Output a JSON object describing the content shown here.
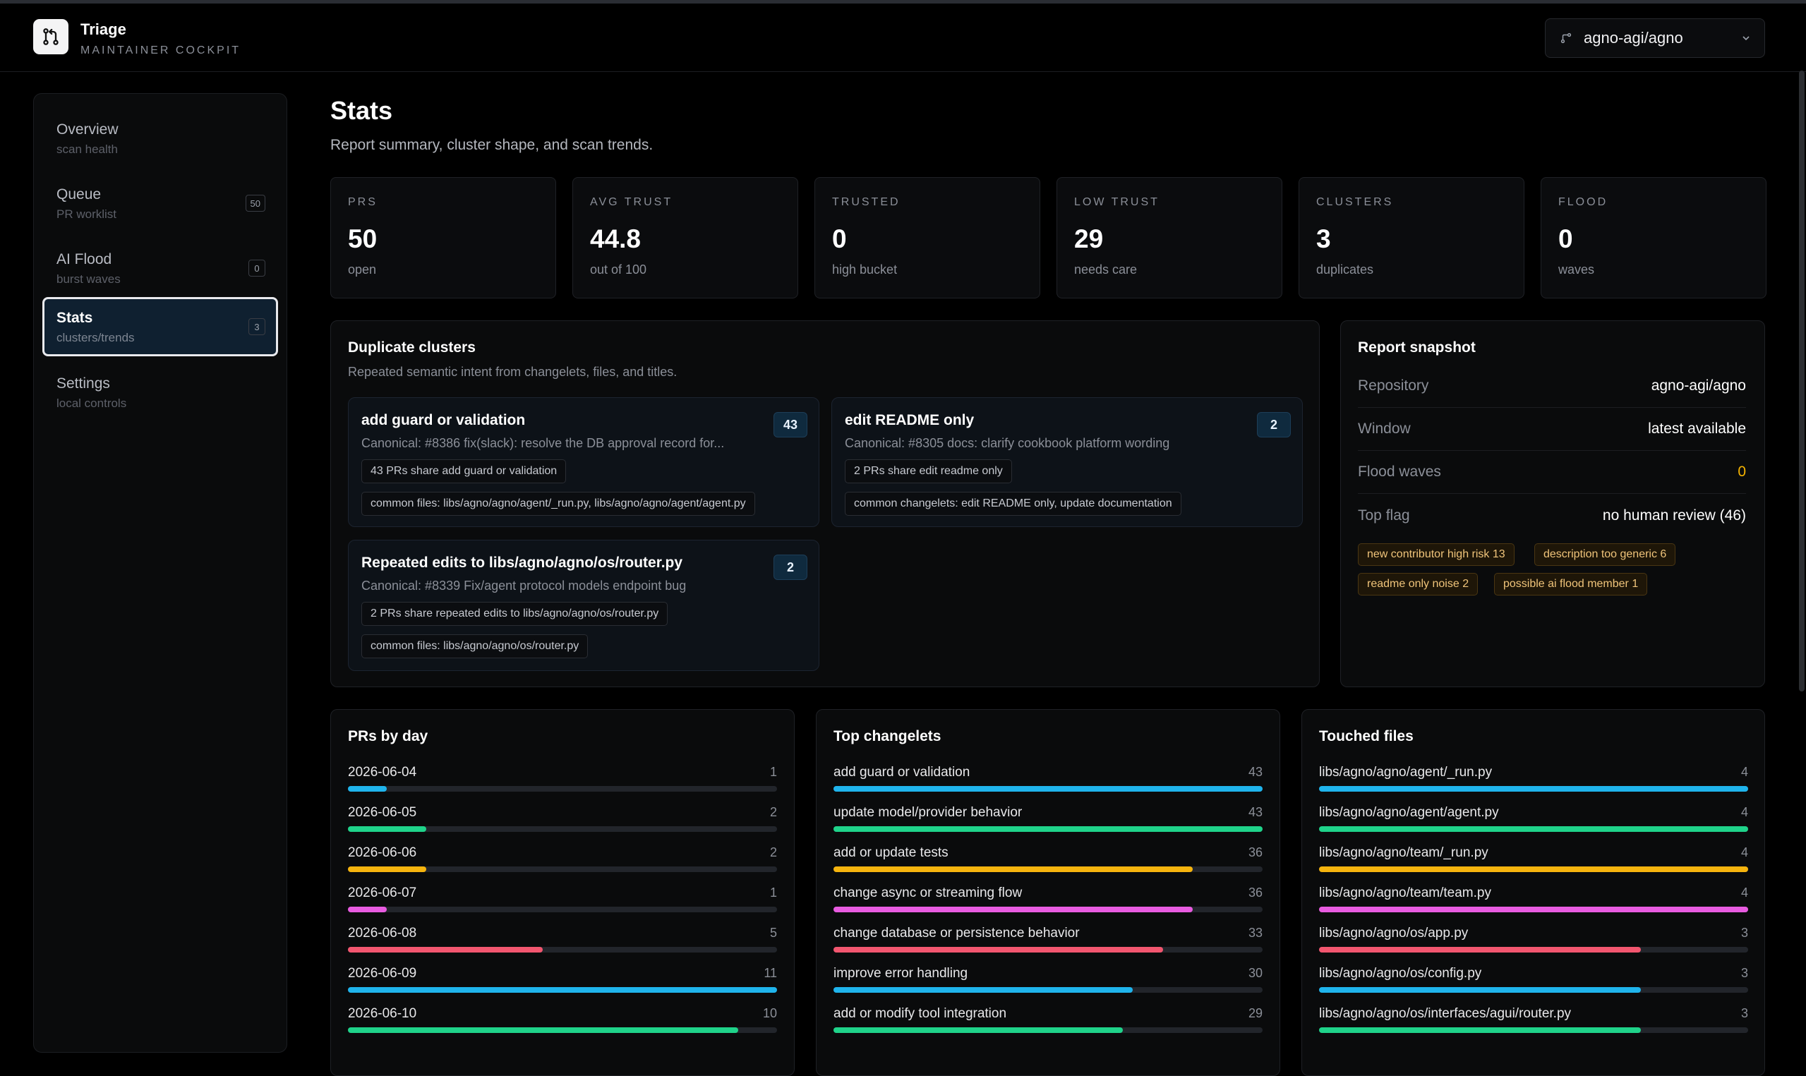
{
  "app": {
    "title": "Triage",
    "subtitle": "MAINTAINER COCKPIT",
    "repo": "agno-agi/agno"
  },
  "sidebar": {
    "items": [
      {
        "label": "Overview",
        "sub": "scan health",
        "badge": null,
        "active": false
      },
      {
        "label": "Queue",
        "sub": "PR worklist",
        "badge": "50",
        "active": false
      },
      {
        "label": "AI Flood",
        "sub": "burst waves",
        "badge": "0",
        "active": false
      },
      {
        "label": "Stats",
        "sub": "clusters/trends",
        "badge": "3",
        "active": true
      },
      {
        "label": "Settings",
        "sub": "local controls",
        "badge": null,
        "active": false
      }
    ]
  },
  "page": {
    "title": "Stats",
    "subtitle": "Report summary, cluster shape, and scan trends."
  },
  "stats": [
    {
      "key": "PRS",
      "value": "50",
      "desc": "open"
    },
    {
      "key": "AVG TRUST",
      "value": "44.8",
      "desc": "out of 100"
    },
    {
      "key": "TRUSTED",
      "value": "0",
      "desc": "high bucket"
    },
    {
      "key": "LOW TRUST",
      "value": "29",
      "desc": "needs care"
    },
    {
      "key": "CLUSTERS",
      "value": "3",
      "desc": "duplicates"
    },
    {
      "key": "FLOOD",
      "value": "0",
      "desc": "waves"
    }
  ],
  "duplicates": {
    "title": "Duplicate clusters",
    "subtitle": "Repeated semantic intent from changelets, files, and titles.",
    "clusters": [
      {
        "title": "add guard or validation",
        "count": "43",
        "canonical": "Canonical: #8386 fix(slack): resolve the DB approval record for...",
        "chips": [
          "43 PRs share add guard or validation",
          "common files: libs/agno/agno/agent/_run.py, libs/agno/agno/agent/agent.py"
        ]
      },
      {
        "title": "edit README only",
        "count": "2",
        "canonical": "Canonical: #8305 docs: clarify cookbook platform wording",
        "chips": [
          "2 PRs share edit readme only",
          "common changelets: edit README only, update documentation"
        ]
      },
      {
        "title": "Repeated edits to libs/agno/agno/os/router.py",
        "count": "2",
        "canonical": "Canonical: #8339 Fix/agent protocol models endpoint bug",
        "chips": [
          "2 PRs share repeated edits to libs/agno/agno/os/router.py",
          "common files: libs/agno/agno/os/router.py"
        ]
      }
    ]
  },
  "snapshot": {
    "title": "Report snapshot",
    "rows": [
      {
        "key": "Repository",
        "value": "agno-agi/agno"
      },
      {
        "key": "Window",
        "value": "latest available"
      },
      {
        "key": "Flood waves",
        "value": "0"
      },
      {
        "key": "Top flag",
        "value": "no human review (46)"
      }
    ],
    "flags": [
      "new contributor high risk 13",
      "description too generic 6",
      "readme only noise 2",
      "possible ai flood member 1"
    ]
  },
  "colors": {
    "cyan": "#1fb4ec",
    "green": "#1fd38a",
    "amber": "#f6b40e",
    "pink": "#e85be0",
    "rose": "#f2566f"
  },
  "prs_by_day": {
    "title": "PRs by day",
    "rows": [
      {
        "label": "2026-06-04",
        "value": 1,
        "color": "#1fb4ec"
      },
      {
        "label": "2026-06-05",
        "value": 2,
        "color": "#1fd38a"
      },
      {
        "label": "2026-06-06",
        "value": 2,
        "color": "#f6b40e"
      },
      {
        "label": "2026-06-07",
        "value": 1,
        "color": "#e85be0"
      },
      {
        "label": "2026-06-08",
        "value": 5,
        "color": "#f2566f"
      },
      {
        "label": "2026-06-09",
        "value": 11,
        "color": "#1fb4ec"
      },
      {
        "label": "2026-06-10",
        "value": 10,
        "color": "#1fd38a"
      }
    ],
    "max": 11
  },
  "top_changelets": {
    "title": "Top changelets",
    "rows": [
      {
        "label": "add guard or validation",
        "value": 43,
        "color": "#1fb4ec"
      },
      {
        "label": "update model/provider behavior",
        "value": 43,
        "color": "#1fd38a"
      },
      {
        "label": "add or update tests",
        "value": 36,
        "color": "#f6b40e"
      },
      {
        "label": "change async or streaming flow",
        "value": 36,
        "color": "#e85be0"
      },
      {
        "label": "change database or persistence behavior",
        "value": 33,
        "color": "#f2566f"
      },
      {
        "label": "improve error handling",
        "value": 30,
        "color": "#1fb4ec"
      },
      {
        "label": "add or modify tool integration",
        "value": 29,
        "color": "#1fd38a"
      }
    ],
    "max": 43
  },
  "touched_files": {
    "title": "Touched files",
    "rows": [
      {
        "label": "libs/agno/agno/agent/_run.py",
        "value": 4,
        "color": "#1fb4ec"
      },
      {
        "label": "libs/agno/agno/agent/agent.py",
        "value": 4,
        "color": "#1fd38a"
      },
      {
        "label": "libs/agno/agno/team/_run.py",
        "value": 4,
        "color": "#f6b40e"
      },
      {
        "label": "libs/agno/agno/team/team.py",
        "value": 4,
        "color": "#e85be0"
      },
      {
        "label": "libs/agno/agno/os/app.py",
        "value": 3,
        "color": "#f2566f"
      },
      {
        "label": "libs/agno/agno/os/config.py",
        "value": 3,
        "color": "#1fb4ec"
      },
      {
        "label": "libs/agno/agno/os/interfaces/agui/router.py",
        "value": 3,
        "color": "#1fd38a"
      }
    ],
    "max": 4
  }
}
